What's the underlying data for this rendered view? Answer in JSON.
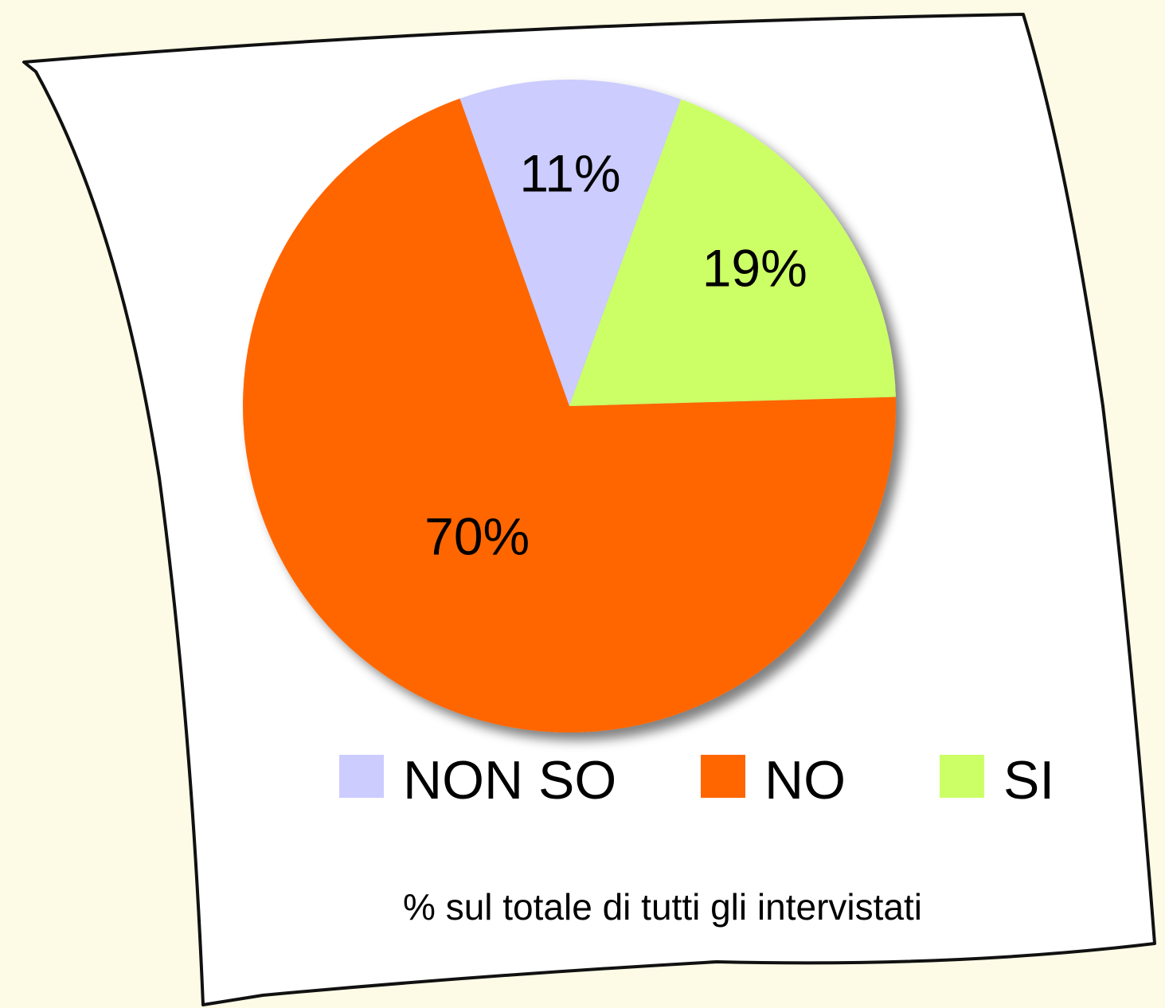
{
  "chart_data": {
    "type": "pie",
    "categories": [
      "NON SO",
      "NO",
      "SI"
    ],
    "values": [
      11,
      70,
      19
    ],
    "value_labels": [
      "11%",
      "70%",
      "19%"
    ],
    "colors": [
      "#ccccff",
      "#ff6600",
      "#ccff66"
    ],
    "start_angle": 20,
    "direction": "counterclockwise",
    "legend": "bottom",
    "caption": "% sul totale di tutti gli intervistati"
  }
}
